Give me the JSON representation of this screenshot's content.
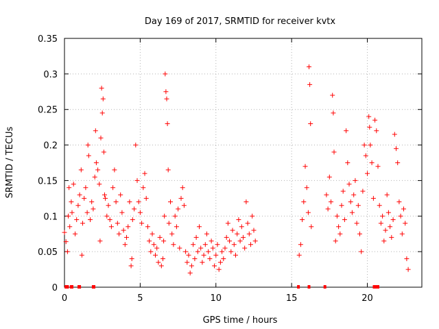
{
  "chart_data": {
    "type": "scatter",
    "title": "Day 169 of 2017, SRMTID for receiver kvtx",
    "xlabel": "GPS time / hours",
    "ylabel": "SRMTID / TECUs",
    "xlim": [
      0,
      23.6
    ],
    "ylim": [
      0,
      0.35
    ],
    "xticks": [
      0,
      5,
      10,
      15,
      20
    ],
    "xtick_labels": [
      "0",
      "5",
      "10",
      "15",
      "20"
    ],
    "yticks": [
      0,
      0.05,
      0.1,
      0.15,
      0.2,
      0.25,
      0.3,
      0.35
    ],
    "ytick_labels": [
      "0",
      "0.05",
      "0.1",
      "0.15",
      "0.2",
      "0.25",
      "0.3",
      "0.35"
    ],
    "grid": true,
    "marker": "+",
    "color": "#ff0000",
    "series": [
      {
        "name": "SRMTID",
        "points": [
          [
            0.0,
            0.077
          ],
          [
            0.1,
            0.064
          ],
          [
            0.2,
            0.05
          ],
          [
            0.25,
            0.1
          ],
          [
            0.3,
            0.14
          ],
          [
            0.35,
            0.085
          ],
          [
            0.45,
            0.12
          ],
          [
            0.5,
            0.105
          ],
          [
            0.6,
            0.145
          ],
          [
            0.7,
            0.075
          ],
          [
            0.8,
            0.095
          ],
          [
            0.9,
            0.115
          ],
          [
            1.0,
            0.13
          ],
          [
            1.1,
            0.165
          ],
          [
            1.15,
            0.045
          ],
          [
            1.2,
            0.09
          ],
          [
            1.3,
            0.125
          ],
          [
            1.4,
            0.14
          ],
          [
            1.5,
            0.105
          ],
          [
            1.55,
            0.2
          ],
          [
            1.6,
            0.185
          ],
          [
            1.7,
            0.095
          ],
          [
            1.8,
            0.12
          ],
          [
            1.9,
            0.11
          ],
          [
            2.0,
            0.155
          ],
          [
            2.05,
            0.22
          ],
          [
            2.1,
            0.175
          ],
          [
            2.2,
            0.165
          ],
          [
            2.3,
            0.145
          ],
          [
            2.35,
            0.065
          ],
          [
            2.4,
            0.21
          ],
          [
            2.45,
            0.28
          ],
          [
            2.5,
            0.245
          ],
          [
            2.55,
            0.265
          ],
          [
            2.6,
            0.19
          ],
          [
            2.65,
            0.13
          ],
          [
            2.7,
            0.125
          ],
          [
            2.8,
            0.1
          ],
          [
            2.9,
            0.115
          ],
          [
            3.0,
            0.095
          ],
          [
            3.1,
            0.085
          ],
          [
            3.2,
            0.14
          ],
          [
            3.3,
            0.165
          ],
          [
            3.4,
            0.12
          ],
          [
            3.5,
            0.09
          ],
          [
            3.6,
            0.075
          ],
          [
            3.7,
            0.13
          ],
          [
            3.8,
            0.105
          ],
          [
            3.9,
            0.08
          ],
          [
            4.0,
            0.06
          ],
          [
            4.1,
            0.07
          ],
          [
            4.2,
            0.085
          ],
          [
            4.3,
            0.12
          ],
          [
            4.4,
            0.03
          ],
          [
            4.45,
            0.04
          ],
          [
            4.5,
            0.095
          ],
          [
            4.6,
            0.11
          ],
          [
            4.7,
            0.2
          ],
          [
            4.8,
            0.15
          ],
          [
            4.9,
            0.12
          ],
          [
            5.0,
            0.105
          ],
          [
            5.1,
            0.09
          ],
          [
            5.2,
            0.14
          ],
          [
            5.3,
            0.16
          ],
          [
            5.4,
            0.125
          ],
          [
            5.5,
            0.085
          ],
          [
            5.6,
            0.065
          ],
          [
            5.7,
            0.05
          ],
          [
            5.8,
            0.075
          ],
          [
            5.9,
            0.06
          ],
          [
            6.0,
            0.045
          ],
          [
            6.1,
            0.055
          ],
          [
            6.2,
            0.035
          ],
          [
            6.3,
            0.07
          ],
          [
            6.4,
            0.03
          ],
          [
            6.5,
            0.04
          ],
          [
            6.55,
            0.065
          ],
          [
            6.6,
            0.1
          ],
          [
            6.65,
            0.3
          ],
          [
            6.7,
            0.275
          ],
          [
            6.75,
            0.265
          ],
          [
            6.8,
            0.23
          ],
          [
            6.85,
            0.165
          ],
          [
            6.9,
            0.09
          ],
          [
            7.0,
            0.12
          ],
          [
            7.1,
            0.075
          ],
          [
            7.2,
            0.06
          ],
          [
            7.3,
            0.1
          ],
          [
            7.4,
            0.085
          ],
          [
            7.5,
            0.11
          ],
          [
            7.6,
            0.055
          ],
          [
            7.7,
            0.125
          ],
          [
            7.8,
            0.14
          ],
          [
            7.9,
            0.115
          ],
          [
            8.0,
            0.05
          ],
          [
            8.1,
            0.035
          ],
          [
            8.2,
            0.045
          ],
          [
            8.3,
            0.02
          ],
          [
            8.4,
            0.03
          ],
          [
            8.5,
            0.06
          ],
          [
            8.6,
            0.04
          ],
          [
            8.7,
            0.07
          ],
          [
            8.8,
            0.05
          ],
          [
            8.9,
            0.085
          ],
          [
            9.0,
            0.055
          ],
          [
            9.1,
            0.035
          ],
          [
            9.2,
            0.045
          ],
          [
            9.3,
            0.06
          ],
          [
            9.4,
            0.075
          ],
          [
            9.5,
            0.05
          ],
          [
            9.6,
            0.04
          ],
          [
            9.7,
            0.065
          ],
          [
            9.8,
            0.055
          ],
          [
            9.9,
            0.03
          ],
          [
            10.0,
            0.045
          ],
          [
            10.1,
            0.06
          ],
          [
            10.2,
            0.025
          ],
          [
            10.3,
            0.035
          ],
          [
            10.4,
            0.05
          ],
          [
            10.5,
            0.04
          ],
          [
            10.6,
            0.055
          ],
          [
            10.7,
            0.07
          ],
          [
            10.8,
            0.09
          ],
          [
            10.9,
            0.065
          ],
          [
            11.0,
            0.05
          ],
          [
            11.1,
            0.08
          ],
          [
            11.2,
            0.06
          ],
          [
            11.3,
            0.045
          ],
          [
            11.4,
            0.075
          ],
          [
            11.5,
            0.095
          ],
          [
            11.6,
            0.065
          ],
          [
            11.7,
            0.085
          ],
          [
            11.8,
            0.07
          ],
          [
            11.9,
            0.055
          ],
          [
            12.0,
            0.12
          ],
          [
            12.1,
            0.09
          ],
          [
            12.2,
            0.075
          ],
          [
            12.3,
            0.06
          ],
          [
            12.4,
            0.1
          ],
          [
            12.5,
            0.08
          ],
          [
            12.6,
            0.065
          ],
          [
            15.5,
            0.045
          ],
          [
            15.6,
            0.06
          ],
          [
            15.7,
            0.095
          ],
          [
            15.8,
            0.12
          ],
          [
            15.9,
            0.17
          ],
          [
            16.0,
            0.14
          ],
          [
            16.1,
            0.105
          ],
          [
            16.15,
            0.31
          ],
          [
            16.2,
            0.285
          ],
          [
            16.25,
            0.23
          ],
          [
            16.3,
            0.085
          ],
          [
            17.3,
            0.13
          ],
          [
            17.4,
            0.11
          ],
          [
            17.5,
            0.155
          ],
          [
            17.6,
            0.12
          ],
          [
            17.7,
            0.27
          ],
          [
            17.75,
            0.245
          ],
          [
            17.8,
            0.19
          ],
          [
            17.9,
            0.065
          ],
          [
            18.0,
            0.1
          ],
          [
            18.1,
            0.085
          ],
          [
            18.2,
            0.075
          ],
          [
            18.3,
            0.115
          ],
          [
            18.4,
            0.135
          ],
          [
            18.5,
            0.095
          ],
          [
            18.6,
            0.22
          ],
          [
            18.7,
            0.175
          ],
          [
            18.8,
            0.145
          ],
          [
            18.9,
            0.12
          ],
          [
            19.0,
            0.105
          ],
          [
            19.1,
            0.13
          ],
          [
            19.2,
            0.15
          ],
          [
            19.3,
            0.09
          ],
          [
            19.4,
            0.115
          ],
          [
            19.5,
            0.075
          ],
          [
            19.6,
            0.05
          ],
          [
            19.7,
            0.135
          ],
          [
            19.8,
            0.2
          ],
          [
            19.9,
            0.185
          ],
          [
            20.0,
            0.16
          ],
          [
            20.1,
            0.24
          ],
          [
            20.15,
            0.225
          ],
          [
            20.2,
            0.2
          ],
          [
            20.3,
            0.175
          ],
          [
            20.4,
            0.125
          ],
          [
            20.5,
            0.235
          ],
          [
            20.6,
            0.22
          ],
          [
            20.7,
            0.17
          ],
          [
            20.8,
            0.115
          ],
          [
            20.9,
            0.09
          ],
          [
            21.0,
            0.1
          ],
          [
            21.1,
            0.065
          ],
          [
            21.2,
            0.08
          ],
          [
            21.3,
            0.13
          ],
          [
            21.4,
            0.105
          ],
          [
            21.5,
            0.085
          ],
          [
            21.6,
            0.07
          ],
          [
            21.7,
            0.095
          ],
          [
            21.8,
            0.215
          ],
          [
            21.9,
            0.195
          ],
          [
            22.0,
            0.175
          ],
          [
            22.1,
            0.12
          ],
          [
            22.2,
            0.1
          ],
          [
            22.3,
            0.075
          ],
          [
            22.4,
            0.11
          ],
          [
            22.5,
            0.09
          ],
          [
            22.6,
            0.04
          ],
          [
            22.7,
            0.025
          ]
        ]
      }
    ],
    "zero_markers_hours": [
      0.1,
      0.2,
      0.45,
      0.5,
      0.95,
      1.0,
      1.9,
      1.95,
      15.45,
      16.15,
      17.2,
      20.45,
      20.5,
      20.55,
      20.6,
      20.65,
      20.7
    ]
  }
}
